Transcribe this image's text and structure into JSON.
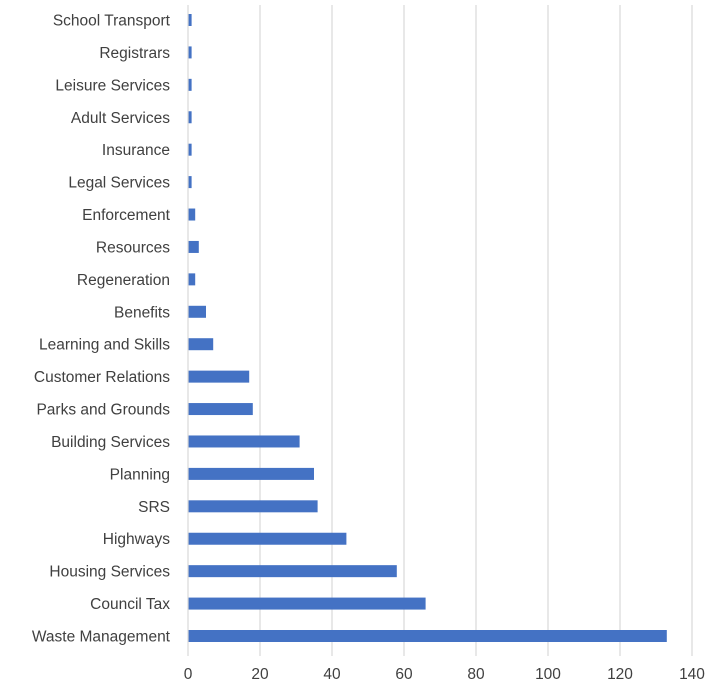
{
  "chart_data": {
    "type": "bar",
    "orientation": "horizontal",
    "categories": [
      "School Transport",
      "Registrars",
      "Leisure Services",
      "Adult Services",
      "Insurance",
      "Legal Services",
      "Enforcement",
      "Resources",
      "Regeneration",
      "Benefits",
      "Learning and Skills",
      "Customer Relations",
      "Parks and Grounds",
      "Building Services",
      "Planning",
      "SRS",
      "Highways",
      "Housing Services",
      "Council Tax",
      "Waste Management"
    ],
    "values": [
      1,
      1,
      1,
      1,
      1,
      1,
      2,
      3,
      2,
      5,
      7,
      17,
      18,
      31,
      35,
      36,
      44,
      58,
      66,
      133
    ],
    "xlim": [
      0,
      140
    ],
    "xticks": [
      0,
      20,
      40,
      60,
      80,
      100,
      120,
      140
    ],
    "grid": true,
    "bar_color": "#4472C4",
    "grid_color": "#D9D9D9",
    "label_color": "#404040"
  }
}
